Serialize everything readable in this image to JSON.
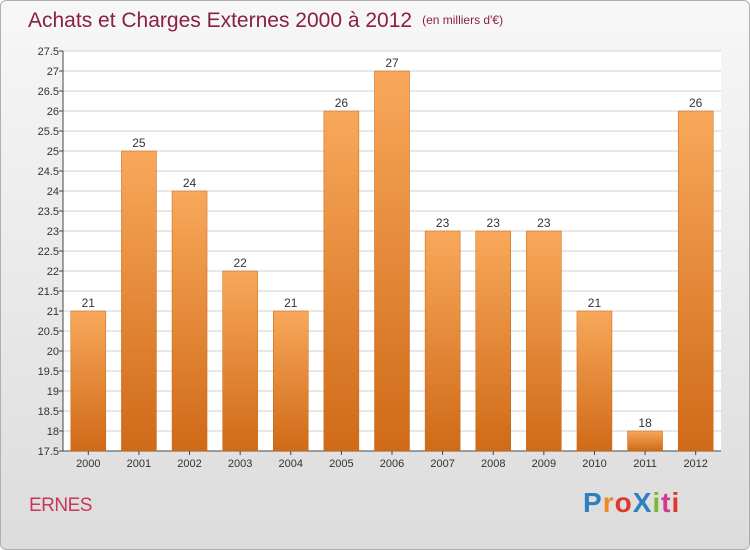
{
  "title": "Achats et Charges Externes 2000 à 2012",
  "unit_note": "(en milliers d'€)",
  "commune": "ERNES",
  "brand": {
    "text": "ProXiti",
    "letter_colors": [
      "#2c7fc1",
      "#f08a24",
      "#e0362f",
      "#2c7fc1",
      "#7bb83a",
      "#d23a8b",
      "#e0362f"
    ]
  },
  "colors": {
    "bar_light": "#f8a85a",
    "bar_dark": "#cf6a18",
    "title": "#8a2040",
    "commune": "#c8365a"
  },
  "chart_data": {
    "type": "bar",
    "categories": [
      "2000",
      "2001",
      "2002",
      "2003",
      "2004",
      "2005",
      "2006",
      "2007",
      "2008",
      "2009",
      "2010",
      "2011",
      "2012"
    ],
    "values": [
      21,
      25,
      24,
      22,
      21,
      26,
      27,
      23,
      23,
      23,
      21,
      18,
      26
    ],
    "ylim": [
      17.5,
      27.5
    ],
    "yticks": [
      "17.5",
      "18",
      "18.5",
      "19",
      "19.5",
      "20",
      "20.5",
      "21",
      "21.5",
      "22",
      "22.5",
      "23",
      "23.5",
      "24",
      "24.5",
      "25",
      "25.5",
      "26",
      "26.5",
      "27",
      "27.5"
    ],
    "grid": true
  }
}
